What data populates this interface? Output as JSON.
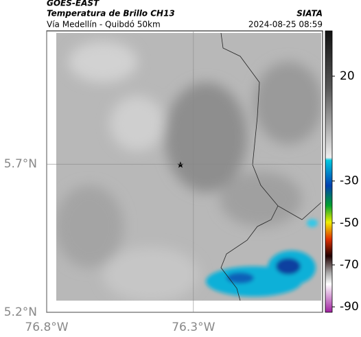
{
  "header": {
    "title": "GOES-EAST",
    "subtitle": "Temperatura de Brillo CH13",
    "region": "Vía Medellín - Quibdó 50km",
    "source": "SIATA",
    "timestamp": "2024-08-25 08:59"
  },
  "map": {
    "xlim": [
      -76.8,
      -75.86
    ],
    "ylim": [
      5.2,
      6.15
    ],
    "xticks": [
      {
        "value": -76.8,
        "label": "76.8°W"
      },
      {
        "value": -76.3,
        "label": "76.3°W"
      }
    ],
    "yticks": [
      {
        "value": 5.7,
        "label": "5.7°N"
      },
      {
        "value": 5.2,
        "label": "5.2°N"
      }
    ]
  },
  "colorbar": {
    "lim": [
      -92.6,
      41.6
    ],
    "ticks": [
      20,
      -30,
      -50,
      -70,
      -90
    ]
  }
}
